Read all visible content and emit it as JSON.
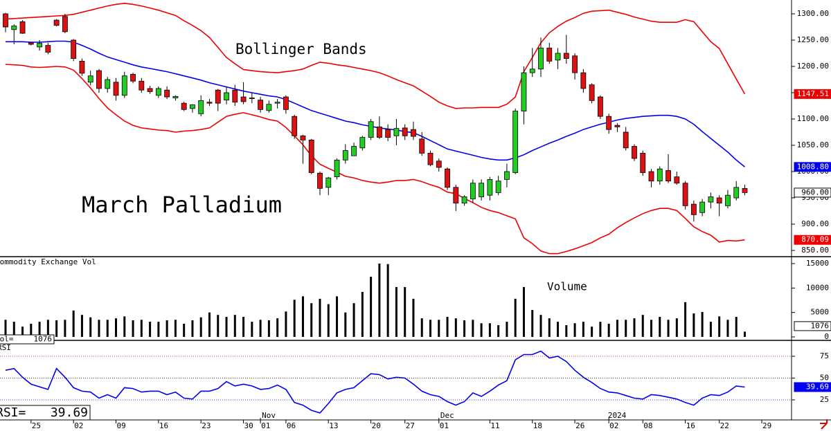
{
  "chart_data": [
    {
      "type": "candlestick",
      "title": "March Palladium",
      "annotation": "Bollinger Bands",
      "categories": [
        null,
        null,
        null,
        "25",
        null,
        null,
        null,
        null,
        "02",
        null,
        null,
        null,
        null,
        "09",
        null,
        null,
        null,
        null,
        "16",
        null,
        null,
        null,
        null,
        "23",
        null,
        null,
        null,
        null,
        "30",
        null,
        "01",
        null,
        null,
        "06",
        null,
        null,
        null,
        null,
        "13",
        null,
        null,
        null,
        null,
        "20",
        null,
        null,
        null,
        "27",
        null,
        null,
        null,
        "01",
        null,
        null,
        null,
        null,
        null,
        "11",
        null,
        null,
        null,
        null,
        "18",
        null,
        null,
        null,
        null,
        "26",
        null,
        null,
        null,
        "02",
        null,
        null,
        null,
        "08",
        null,
        null,
        null,
        null,
        "16",
        null,
        null,
        null,
        "22",
        null,
        null,
        null,
        null,
        "29"
      ],
      "periods": [
        {
          "label": "Nov",
          "index": 30
        },
        {
          "label": "Dec",
          "index": 51
        },
        {
          "label": "2024",
          "index": 71
        }
      ],
      "open": [
        1300,
        1270,
        1285,
        1245,
        1237,
        1240,
        1288,
        1295,
        1250,
        1210,
        1170,
        1192,
        1158,
        1170,
        1145,
        1185,
        1172,
        1158,
        1145,
        1155,
        1140,
        1130,
        1120,
        1110,
        1132,
        1155,
        1136,
        1155,
        1142,
        1140,
        1136,
        1116,
        1130,
        1142,
        1105,
        1068,
        1060,
        997,
        970,
        990,
        1022,
        1030,
        1045,
        1065,
        1085,
        1080,
        1068,
        1083,
        1080,
        1062,
        1035,
        1020,
        1005,
        970,
        940,
        948,
        952,
        955,
        960,
        985,
        998,
        1115,
        1188,
        1195,
        1235,
        1212,
        1225,
        1220,
        1188,
        1165,
        1142,
        1105,
        1088,
        1075,
        1048,
        1035,
        1000,
        982,
        1002,
        990,
        978,
        938,
        922,
        942,
        950,
        935,
        950,
        968,
        null,
        null
      ],
      "high": [
        1302,
        1280,
        1288,
        1247,
        1250,
        1245,
        1290,
        1300,
        1252,
        1215,
        1192,
        1195,
        1180,
        1178,
        1190,
        1188,
        1178,
        1163,
        1162,
        1162,
        1145,
        1133,
        1128,
        1145,
        1138,
        1157,
        1162,
        1165,
        1170,
        1150,
        1142,
        1135,
        1138,
        1145,
        1108,
        1070,
        1062,
        1000,
        990,
        1025,
        1052,
        1055,
        1068,
        1100,
        1105,
        1090,
        1100,
        1090,
        1095,
        1075,
        1040,
        1025,
        1008,
        975,
        955,
        985,
        985,
        990,
        992,
        1015,
        1120,
        1200,
        1235,
        1255,
        1245,
        1235,
        1260,
        1225,
        1195,
        1168,
        1145,
        1110,
        1092,
        1085,
        1052,
        1040,
        1005,
        1010,
        1033,
        1000,
        982,
        945,
        948,
        960,
        955,
        965,
        982,
        975,
        null,
        null
      ],
      "low": [
        1265,
        1242,
        1262,
        1240,
        1230,
        1223,
        1276,
        1263,
        1210,
        1182,
        1164,
        1150,
        1150,
        1135,
        1140,
        1168,
        1150,
        1148,
        1140,
        1138,
        1135,
        1115,
        1112,
        1105,
        1125,
        1115,
        1128,
        1125,
        1128,
        1130,
        1112,
        1112,
        1120,
        1110,
        1062,
        1015,
        995,
        955,
        955,
        985,
        1015,
        1030,
        1040,
        1060,
        1062,
        1058,
        1050,
        1060,
        1060,
        1030,
        1010,
        1000,
        965,
        925,
        935,
        940,
        945,
        945,
        955,
        970,
        995,
        1090,
        1180,
        1180,
        1205,
        1195,
        1205,
        1175,
        1150,
        1130,
        1100,
        1072,
        1075,
        1040,
        1020,
        992,
        970,
        975,
        978,
        975,
        928,
        905,
        915,
        930,
        915,
        930,
        945,
        955,
        null,
        null
      ],
      "close": [
        1275,
        1277,
        1263,
        1242,
        1244,
        1227,
        1278,
        1266,
        1215,
        1187,
        1182,
        1158,
        1175,
        1145,
        1182,
        1172,
        1155,
        1152,
        1158,
        1142,
        1143,
        1118,
        1127,
        1135,
        1130,
        1130,
        1150,
        1132,
        1133,
        1139,
        1118,
        1128,
        1132,
        1118,
        1068,
        1060,
        998,
        968,
        988,
        1022,
        1040,
        1048,
        1065,
        1095,
        1065,
        1065,
        1082,
        1068,
        1067,
        1035,
        1013,
        1008,
        970,
        940,
        952,
        978,
        978,
        985,
        982,
        1000,
        1115,
        1188,
        1195,
        1235,
        1210,
        1225,
        1215,
        1188,
        1158,
        1135,
        1105,
        1080,
        1085,
        1045,
        1025,
        998,
        982,
        1005,
        982,
        978,
        935,
        918,
        942,
        952,
        940,
        955,
        970,
        960,
        null,
        null
      ],
      "close_label": "960.00",
      "up_color": "#22cc22",
      "down_color": "#dd1111",
      "series": [
        {
          "color": "#ee0000",
          "last_label": "1147.51",
          "values": [
            1290,
            1291,
            1292,
            1293,
            1294,
            1295,
            1296,
            1297,
            1299,
            1303,
            1307,
            1311,
            1315,
            1318,
            1320,
            1318,
            1315,
            1311,
            1307,
            1302,
            1297,
            1287,
            1278,
            1268,
            1255,
            1236,
            1217,
            1205,
            1194,
            1192,
            1190,
            1189,
            1188,
            1190,
            1192,
            1195,
            1202,
            1208,
            1206,
            1203,
            1201,
            1198,
            1195,
            1192,
            1188,
            1182,
            1175,
            1169,
            1163,
            1153,
            1143,
            1132,
            1125,
            1120,
            1121,
            1121,
            1122,
            1122,
            1122,
            1128,
            1142,
            1190,
            1217,
            1245,
            1264,
            1276,
            1286,
            1293,
            1301,
            1305,
            1306,
            1307,
            1303,
            1299,
            1294,
            1290,
            1286,
            1284,
            1284,
            1284,
            1289,
            1285,
            1266,
            1247,
            1234,
            1205,
            1176,
            1147.51,
            null,
            null
          ]
        },
        {
          "color": "#0000ee",
          "last_label": "1008.80",
          "values": [
            1247,
            1247,
            1247,
            1246,
            1246,
            1247,
            1248,
            1248,
            1246,
            1240,
            1233,
            1225,
            1218,
            1213,
            1208,
            1203,
            1199,
            1196,
            1193,
            1190,
            1186,
            1182,
            1178,
            1174,
            1169,
            1165,
            1161,
            1157,
            1153,
            1150,
            1147,
            1144,
            1142,
            1137,
            1130,
            1123,
            1116,
            1111,
            1106,
            1101,
            1096,
            1093,
            1089,
            1086,
            1083,
            1081,
            1079,
            1076,
            1074,
            1067,
            1059,
            1051,
            1043,
            1039,
            1035,
            1031,
            1027,
            1024,
            1022,
            1022,
            1026,
            1032,
            1040,
            1047,
            1054,
            1060,
            1067,
            1073,
            1080,
            1085,
            1090,
            1094,
            1098,
            1101,
            1103,
            1105,
            1106,
            1107,
            1107,
            1105,
            1100,
            1090,
            1076,
            1063,
            1050,
            1037,
            1022,
            1008.8,
            null,
            null
          ]
        },
        {
          "color": "#ee0000",
          "last_label": "870.09",
          "values": [
            1204,
            1203,
            1202,
            1199,
            1198,
            1199,
            1200,
            1199,
            1193,
            1177,
            1159,
            1139,
            1121,
            1108,
            1096,
            1088,
            1083,
            1081,
            1079,
            1078,
            1075,
            1077,
            1078,
            1080,
            1083,
            1094,
            1105,
            1109,
            1112,
            1108,
            1104,
            1099,
            1096,
            1084,
            1068,
            1051,
            1030,
            1014,
            1006,
            999,
            991,
            988,
            983,
            980,
            978,
            980,
            983,
            983,
            985,
            981,
            975,
            970,
            961,
            958,
            949,
            941,
            932,
            926,
            922,
            916,
            910,
            874,
            863,
            849,
            844,
            844,
            848,
            853,
            859,
            865,
            874,
            881,
            893,
            903,
            912,
            920,
            926,
            930,
            930,
            926,
            911,
            895,
            886,
            879,
            866,
            869,
            868,
            870.09,
            null,
            null
          ]
        }
      ],
      "ylim": [
        839.5,
        1326.3
      ],
      "yticks": [
        {
          "value": 1300,
          "label": "1300.00"
        },
        {
          "value": 1250,
          "label": "1250.00"
        },
        {
          "value": 1200,
          "label": "1200.00"
        },
        {
          "value": 1150,
          "label": "1150.00"
        },
        {
          "value": 1100,
          "label": "1100.00"
        },
        {
          "value": 1050,
          "label": "1050.00"
        },
        {
          "value": 1000,
          "label": "1000.00"
        },
        {
          "value": 950,
          "label": "950.00"
        },
        {
          "value": 900,
          "label": "900.00"
        },
        {
          "value": 850,
          "label": "850.00"
        }
      ]
    },
    {
      "type": "bar",
      "title": "Commodity Exchange Vol",
      "annotation": "Volume",
      "readout_label": "Vol=",
      "color": "#000000",
      "values": [
        3500,
        3100,
        2100,
        2700,
        3100,
        3500,
        3400,
        3500,
        5400,
        4500,
        4000,
        3500,
        3500,
        3800,
        4200,
        3400,
        3500,
        3100,
        3100,
        3400,
        3500,
        2700,
        3400,
        4000,
        5000,
        4500,
        4100,
        4500,
        4100,
        3100,
        3500,
        3400,
        3800,
        5200,
        7600,
        8300,
        6900,
        7800,
        6700,
        8300,
        5000,
        6900,
        9200,
        12300,
        15000,
        14900,
        10200,
        10200,
        7800,
        3800,
        3500,
        3500,
        4100,
        3800,
        3400,
        3500,
        2800,
        2800,
        2400,
        3100,
        7800,
        10200,
        5500,
        4500,
        3800,
        3100,
        2400,
        2800,
        3100,
        2100,
        3100,
        2700,
        3500,
        3500,
        3800,
        4500,
        3500,
        4100,
        3500,
        3800,
        7100,
        4800,
        5100,
        3100,
        4200,
        3500,
        4100,
        1076,
        null,
        null
      ],
      "ylim": [
        0,
        16270
      ],
      "yticks": [
        15000,
        10000,
        5000,
        0
      ]
    },
    {
      "type": "line",
      "title": "RSI",
      "readout_label": "RSI=",
      "color": "#0000ee",
      "values": [
        59,
        61,
        51,
        43,
        40,
        37,
        61,
        51,
        39,
        35,
        34,
        27,
        31,
        27,
        39,
        38,
        34,
        35,
        35,
        31,
        34,
        27,
        26,
        35,
        35,
        38,
        46,
        41,
        43,
        41,
        37,
        38,
        42,
        37,
        22,
        19,
        13,
        10,
        21,
        33,
        37,
        39,
        47,
        55,
        54,
        49,
        51,
        50,
        43,
        35,
        31,
        29,
        23,
        19,
        23,
        33,
        29,
        35,
        42,
        47,
        71,
        77,
        77,
        81,
        73,
        75,
        69,
        59,
        51,
        45,
        38,
        34,
        33,
        30,
        27,
        26,
        31,
        30,
        28,
        26,
        22,
        19,
        27,
        31,
        30,
        34,
        41,
        39.69,
        null,
        null
      ],
      "reference_lines": [
        {
          "value": 75,
          "color": "#e00000"
        },
        {
          "value": 50,
          "color": "#000000"
        },
        {
          "value": 25,
          "color": "#0000ee"
        }
      ],
      "ylim": [
        2,
        89.3
      ],
      "yticks": [
        75,
        50,
        25
      ]
    }
  ]
}
